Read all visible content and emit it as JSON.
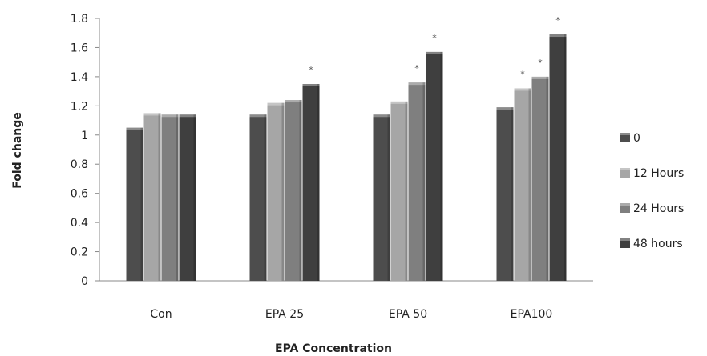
{
  "chart_data": {
    "type": "bar",
    "title": "",
    "xlabel": "EPA Concentration",
    "ylabel": "Fold change",
    "ylim": [
      0,
      1.8
    ],
    "yticks": [
      "0",
      "0.2",
      "0.4",
      "0.6",
      "0.8",
      "1",
      "1.2",
      "1.4",
      "1.6",
      "1.8"
    ],
    "categories": [
      "Con",
      "EPA 25",
      "EPA 50",
      "EPA100"
    ],
    "series": [
      {
        "name": "0",
        "values": [
          1.05,
          1.14,
          1.14,
          1.19
        ],
        "color": "#4d4d4d",
        "significant": [
          false,
          false,
          false,
          false
        ]
      },
      {
        "name": "12 Hours",
        "values": [
          1.15,
          1.22,
          1.23,
          1.32
        ],
        "color": "#a6a6a6",
        "significant": [
          false,
          false,
          false,
          true
        ]
      },
      {
        "name": "24 Hours",
        "values": [
          1.14,
          1.24,
          1.36,
          1.4
        ],
        "color": "#7f7f7f",
        "significant": [
          false,
          false,
          true,
          true
        ]
      },
      {
        "name": "48 hours",
        "values": [
          1.14,
          1.35,
          1.57,
          1.69
        ],
        "color": "#3f3f3f",
        "significant": [
          false,
          true,
          true,
          true
        ]
      }
    ],
    "significance_marker": "*",
    "grid": false,
    "legend_position": "right"
  }
}
